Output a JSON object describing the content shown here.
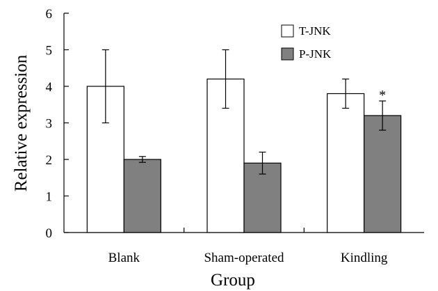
{
  "chart_data": {
    "type": "bar",
    "title": "",
    "xlabel": "Group",
    "ylabel": "Relative expression",
    "ylim": [
      0,
      6
    ],
    "yticks": [
      "0",
      "1",
      "2",
      "3",
      "4",
      "5",
      "6"
    ],
    "categories": [
      "Blank",
      "Sham-operated",
      "Kindling"
    ],
    "series": [
      {
        "name": "T-JNK",
        "values": [
          4.0,
          4.2,
          3.8
        ],
        "errors": [
          1.0,
          0.8,
          0.4
        ],
        "fill": "#ffffff"
      },
      {
        "name": "P-JNK",
        "values": [
          2.0,
          1.9,
          3.2
        ],
        "errors": [
          0.08,
          0.3,
          0.4
        ],
        "fill": "#808080"
      }
    ],
    "annotations": [
      {
        "category": "Kindling",
        "series": "P-JNK",
        "text": "*"
      }
    ],
    "grid": false,
    "legend": "top-right"
  }
}
